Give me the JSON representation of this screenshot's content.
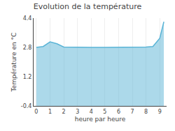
{
  "chart_data": {
    "type": "area",
    "title": "Evolution de la température",
    "x_label": "heure par heure",
    "y_label": "Température en °C",
    "x": [
      0,
      0.5,
      1,
      1.5,
      2,
      3,
      4,
      5,
      6,
      7,
      8,
      8.5,
      9,
      9.3
    ],
    "values": [
      2.8,
      2.85,
      3.1,
      3.0,
      2.82,
      2.8,
      2.8,
      2.8,
      2.8,
      2.8,
      2.82,
      2.85,
      3.3,
      4.2
    ],
    "color": "#5ab4d6",
    "xlim": [
      -0.2,
      9.5
    ],
    "ylim": [
      -0.4,
      4.4
    ],
    "xticks": [
      0,
      1,
      2,
      3,
      4,
      5,
      6,
      7,
      8,
      9
    ],
    "yticks": [
      -0.4,
      1.2,
      2.8,
      4.4
    ],
    "grid": "x"
  }
}
